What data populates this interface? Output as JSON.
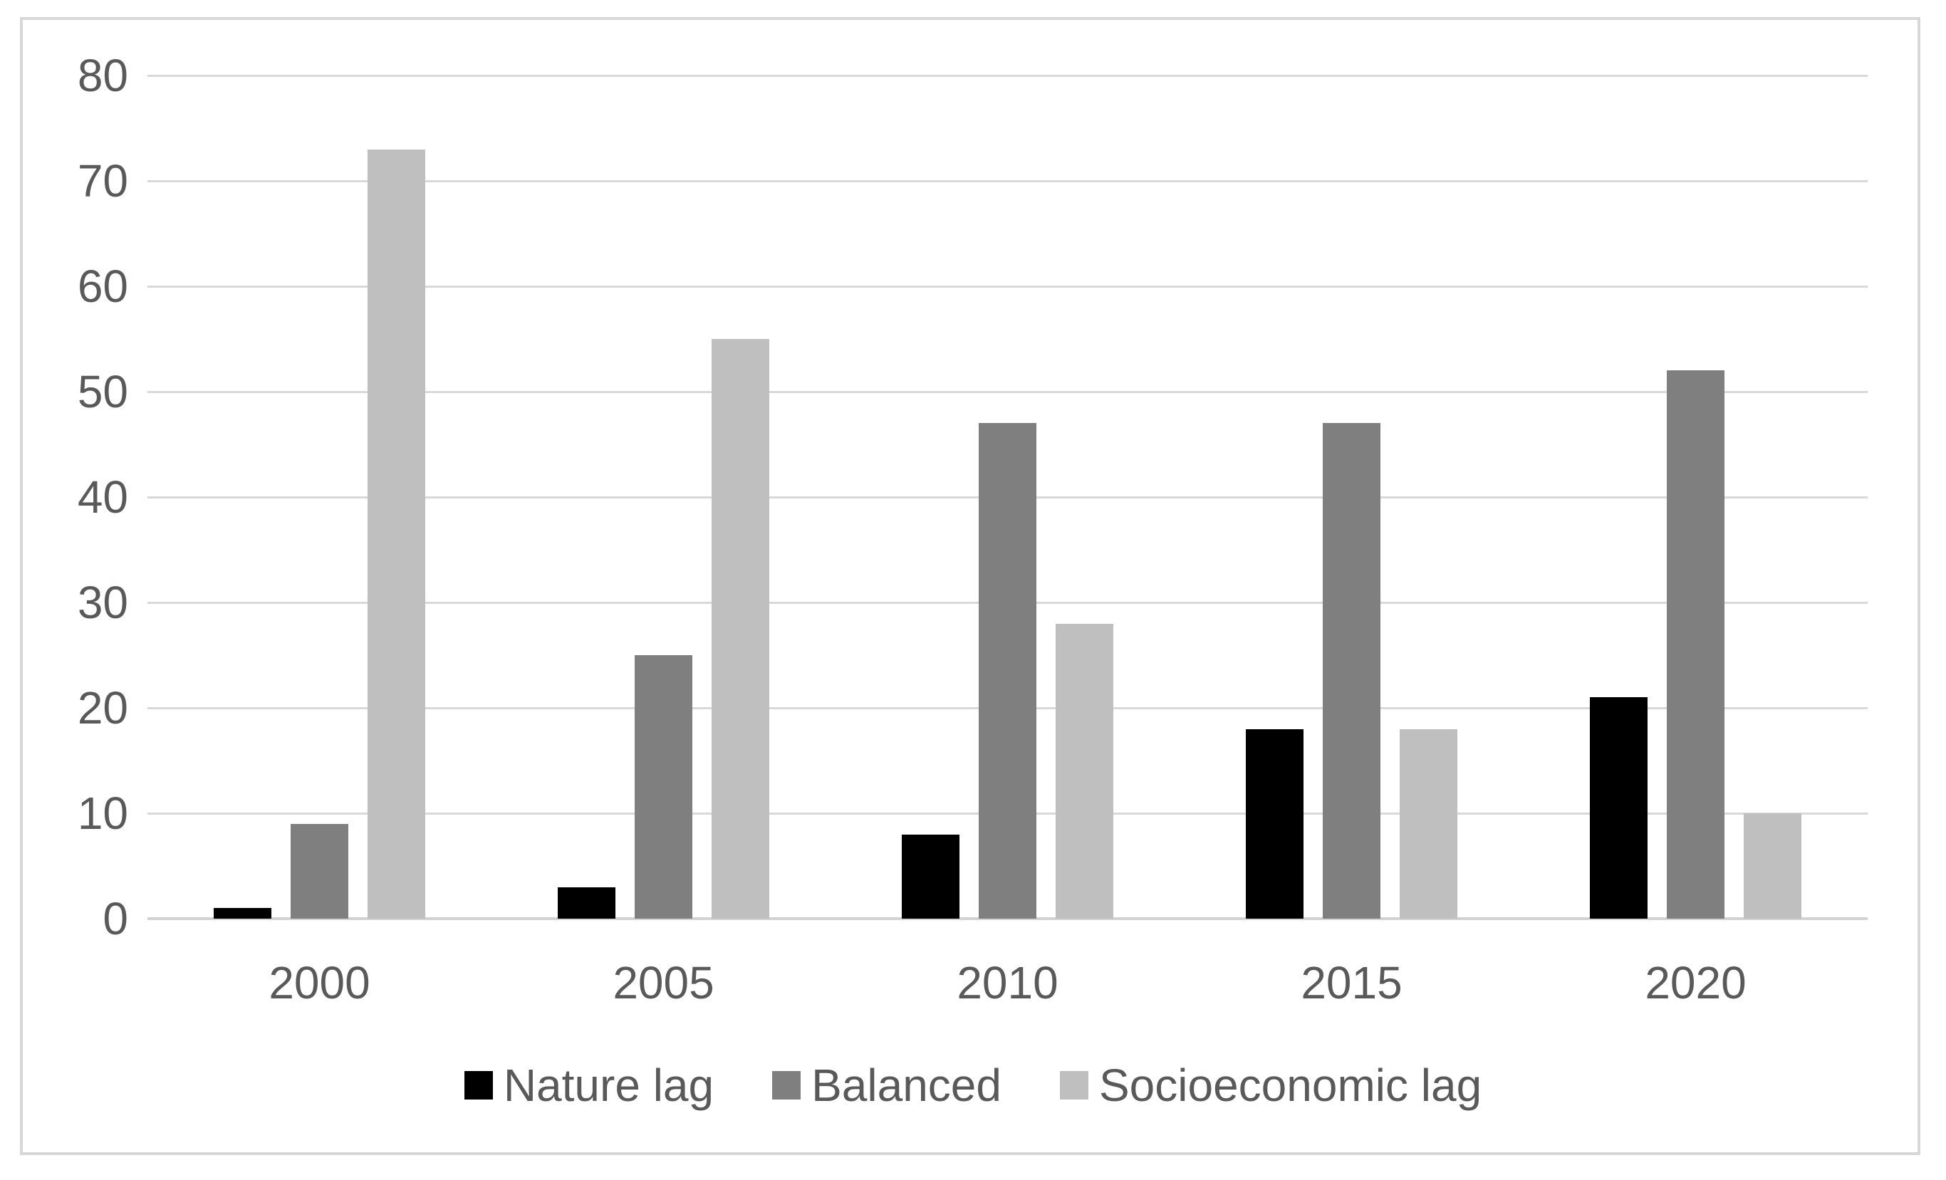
{
  "chart_data": {
    "type": "bar",
    "title": "",
    "xlabel": "",
    "ylabel": "",
    "categories": [
      "2000",
      "2005",
      "2010",
      "2015",
      "2020"
    ],
    "series": [
      {
        "name": "Nature lag",
        "color": "#000000",
        "values": [
          1,
          3,
          8,
          18,
          21
        ]
      },
      {
        "name": "Balanced",
        "color": "#7f7f7f",
        "values": [
          9,
          25,
          47,
          47,
          52
        ]
      },
      {
        "name": "Socioeconomic lag",
        "color": "#bfbfbf",
        "values": [
          73,
          55,
          28,
          18,
          10
        ]
      }
    ],
    "ylim": [
      0,
      80
    ],
    "y_ticks": [
      "0",
      "10",
      "20",
      "30",
      "40",
      "50",
      "60",
      "70",
      "80"
    ],
    "grid": "horizontal",
    "legend_position": "bottom-center"
  },
  "style": {
    "background_color": "#ffffff",
    "frame_border_color": "#d7d7d7",
    "gridline_color": "#d9d9d9",
    "axis_line_color": "#d2d2d2",
    "tick_label_color": "#595959",
    "legend_label_color": "#595959"
  }
}
